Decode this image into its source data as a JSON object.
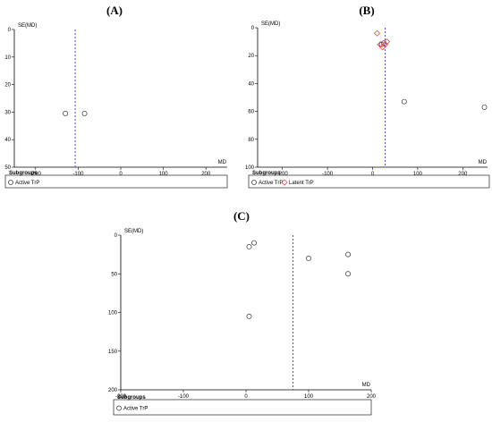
{
  "chart_data": [
    {
      "panel": "(A)",
      "type": "scatter",
      "title": "(A)",
      "xlabel": "MD",
      "ylabel": "SE(MD)",
      "xlim": [
        -250,
        250
      ],
      "ylim": [
        50,
        0
      ],
      "x_ticks": [
        "-200",
        "-100",
        "0",
        "100",
        "200"
      ],
      "y_ticks": [
        "0",
        "10",
        "20",
        "30",
        "40",
        "50"
      ],
      "reference_line_x": -107,
      "legend_title": "Subgroups",
      "series": [
        {
          "name": "Active TrP",
          "marker": "circle",
          "color": "#333333",
          "points": [
            {
              "x": -130,
              "y": 30.5
            },
            {
              "x": -85,
              "y": 30.5
            }
          ]
        }
      ]
    },
    {
      "panel": "(B)",
      "type": "scatter",
      "title": "(B)",
      "xlabel": "MD",
      "ylabel": "SE(MD)",
      "xlim": [
        -255,
        255
      ],
      "ylim": [
        100,
        0
      ],
      "x_ticks": [
        "-200",
        "-100",
        "0",
        "100",
        "200"
      ],
      "y_ticks": [
        "0",
        "20",
        "40",
        "60",
        "80",
        "100"
      ],
      "reference_line_x": 28,
      "legend_title": "Subgroups",
      "series": [
        {
          "name": "Active TrP",
          "marker": "circle",
          "color": "#333333",
          "points": [
            {
              "x": 20,
              "y": 12
            },
            {
              "x": 25,
              "y": 11
            },
            {
              "x": 70,
              "y": 53
            },
            {
              "x": 248,
              "y": 57
            }
          ]
        },
        {
          "name": "Latent TrP",
          "marker": "diamond",
          "color": "#d94c4c",
          "points": [
            {
              "x": 10,
              "y": 4
            },
            {
              "x": 17,
              "y": 12
            },
            {
              "x": 22,
              "y": 14
            },
            {
              "x": 28,
              "y": 12
            },
            {
              "x": 32,
              "y": 10
            }
          ]
        }
      ]
    },
    {
      "panel": "(C)",
      "type": "scatter",
      "title": "(C)",
      "xlabel": "MD",
      "ylabel": "SE(MD)",
      "xlim": [
        -200,
        200
      ],
      "ylim": [
        200,
        0
      ],
      "x_ticks": [
        "-200",
        "-100",
        "0",
        "100",
        "200"
      ],
      "y_ticks": [
        "0",
        "50",
        "100",
        "150",
        "200"
      ],
      "reference_line_x": 75,
      "legend_title": "Subgroups",
      "series": [
        {
          "name": "Active TrP",
          "marker": "circle",
          "color": "#333333",
          "points": [
            {
              "x": 5,
              "y": 15
            },
            {
              "x": 13,
              "y": 10
            },
            {
              "x": 100,
              "y": 30
            },
            {
              "x": 163,
              "y": 25
            },
            {
              "x": 163,
              "y": 50
            },
            {
              "x": 5,
              "y": 105
            }
          ]
        }
      ]
    }
  ]
}
